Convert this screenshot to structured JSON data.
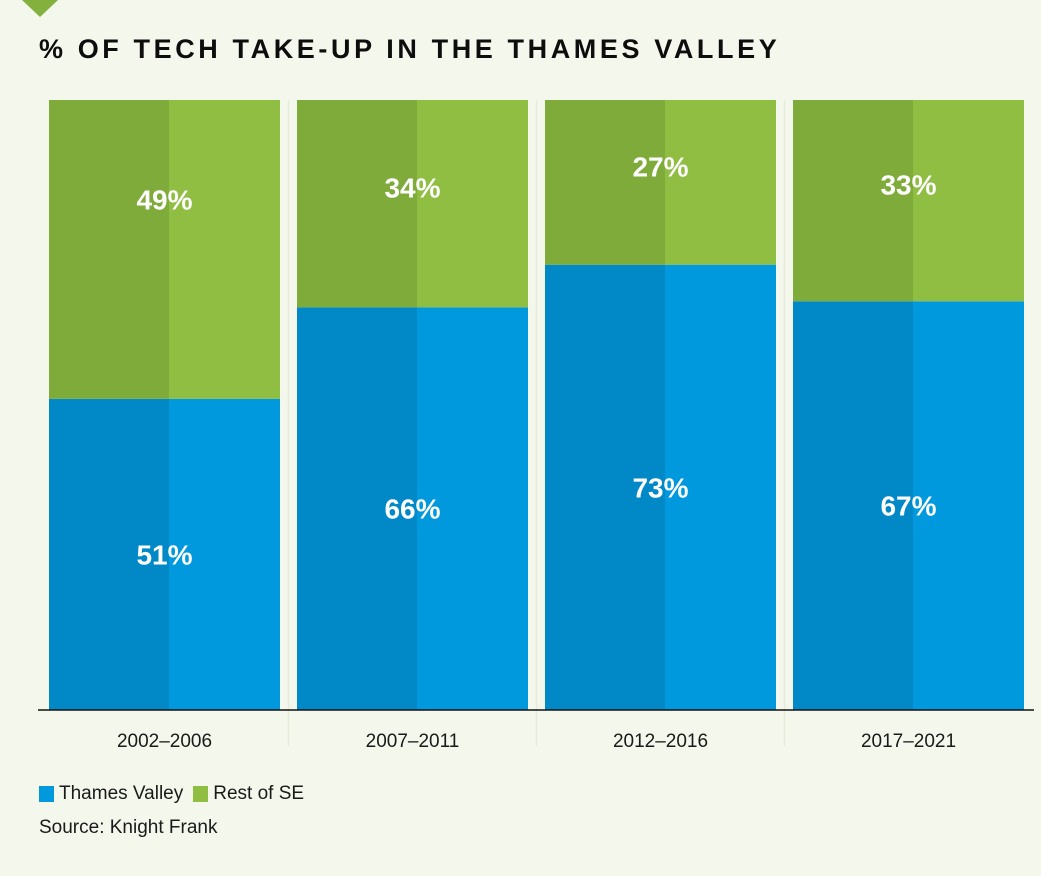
{
  "chart_data": {
    "type": "bar",
    "stacked": true,
    "normalized": true,
    "title": "% OF TECH TAKE-UP IN THE THAMES VALLEY",
    "categories": [
      "2002–2006",
      "2007–2011",
      "2012–2016",
      "2017–2021"
    ],
    "series": [
      {
        "name": "Thames Valley",
        "values": [
          51,
          66,
          73,
          67
        ],
        "color": "#0099dd",
        "color_dark": "#0089c6"
      },
      {
        "name": "Rest of SE",
        "values": [
          49,
          34,
          27,
          33
        ],
        "color": "#8fbe42",
        "color_dark": "#7fab3b"
      }
    ],
    "value_suffix": "%",
    "ylim": [
      0,
      100
    ],
    "xlabel": "",
    "ylabel": "",
    "grid": false,
    "legend_position": "bottom-left",
    "source": "Source: Knight Frank"
  },
  "marker_color": "#84b13e",
  "legend": [
    {
      "label": "Thames Valley",
      "color": "#0099dd"
    },
    {
      "label": "Rest of SE",
      "color": "#8fbe42"
    }
  ]
}
